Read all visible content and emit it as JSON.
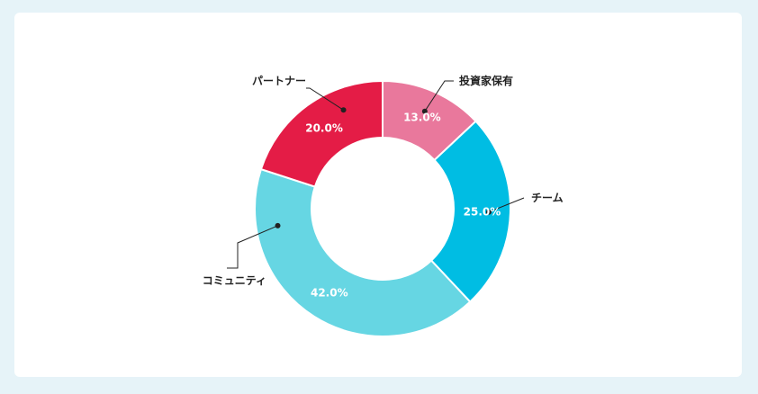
{
  "chart_data": {
    "type": "pie",
    "variant": "donut",
    "categories": [
      "投資家保有",
      "チーム",
      "コミュニティ",
      "パートナー"
    ],
    "values": [
      13.0,
      25.0,
      42.0,
      20.0
    ],
    "value_labels": [
      "13.0%",
      "25.0%",
      "42.0%",
      "20.0%"
    ],
    "colors": [
      "#e9789c",
      "#00bde3",
      "#66d6e3",
      "#e41c46"
    ],
    "title": "",
    "legend": "none"
  }
}
